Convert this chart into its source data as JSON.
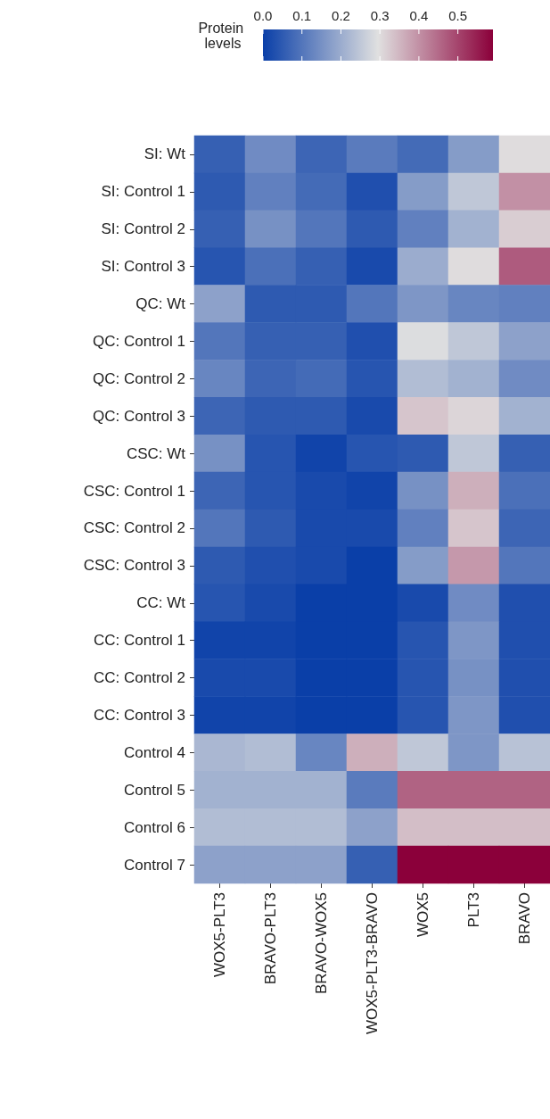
{
  "chart_data": {
    "type": "heatmap",
    "clabel": "Protein levels",
    "clim": [
      0,
      0.59
    ],
    "cticks": [
      {
        "value": 0,
        "label": "0.0"
      },
      0.1,
      0.2,
      0.3,
      0.4,
      0.5
    ],
    "categories": [
      "WOX5-PLT3",
      "BRAVO-PLT3",
      "BRAVO-WOX5",
      "WOX5-PLT3-BRAVO",
      "WOX5",
      "PLT3",
      "BRAVO"
    ],
    "y_categories": [
      "SI: Wt",
      "SI: Control 1",
      "SI: Control 2",
      "SI: Control 3",
      "QC: Wt",
      "QC: Control 1",
      "QC: Control 2",
      "QC: Control 3",
      "CSC: Wt",
      "CSC: Control 1",
      "CSC: Control 2",
      "CSC: Control 3",
      "CC: Wt",
      "CC: Control 1",
      "CC: Control 2",
      "CC: Control 3",
      "Control 4",
      "Control 5",
      "Control 6",
      "Control 7"
    ],
    "cells": [
      [
        0.06,
        0.14,
        0.07,
        0.11,
        0.08,
        0.17,
        0.3
      ],
      [
        0.05,
        0.12,
        0.08,
        0.03,
        0.17,
        0.25,
        0.4
      ],
      [
        0.06,
        0.15,
        0.1,
        0.05,
        0.12,
        0.21,
        0.32
      ],
      [
        0.04,
        0.09,
        0.06,
        0.02,
        0.2,
        0.3,
        0.47
      ],
      [
        0.18,
        0.05,
        0.05,
        0.1,
        0.16,
        0.13,
        0.12
      ],
      [
        0.1,
        0.06,
        0.06,
        0.03,
        0.29,
        0.25,
        0.18
      ],
      [
        0.13,
        0.07,
        0.08,
        0.04,
        0.23,
        0.21,
        0.14
      ],
      [
        0.07,
        0.05,
        0.05,
        0.02,
        0.33,
        0.31,
        0.21
      ],
      [
        0.15,
        0.04,
        0.01,
        0.04,
        0.05,
        0.25,
        0.06
      ],
      [
        0.07,
        0.04,
        0.02,
        0.01,
        0.15,
        0.36,
        0.09
      ],
      [
        0.1,
        0.05,
        0.02,
        0.02,
        0.12,
        0.33,
        0.07
      ],
      [
        0.05,
        0.03,
        0.02,
        0,
        0.17,
        0.39,
        0.1
      ],
      [
        0.04,
        0.02,
        0,
        0,
        0.02,
        0.14,
        0.03
      ],
      [
        0.01,
        0.01,
        0,
        0,
        0.04,
        0.16,
        0.03
      ],
      [
        0.02,
        0.02,
        0,
        0,
        0.04,
        0.15,
        0.03
      ],
      [
        0.01,
        0.01,
        0,
        0,
        0.04,
        0.16,
        0.03
      ],
      [
        0.22,
        0.23,
        0.13,
        0.36,
        0.25,
        0.16,
        0.24
      ],
      [
        0.21,
        0.21,
        0.21,
        0.11,
        0.46,
        0.46,
        0.46
      ],
      [
        0.23,
        0.23,
        0.23,
        0.18,
        0.34,
        0.34,
        0.34
      ],
      [
        0.18,
        0.18,
        0.18,
        0.06,
        0.59,
        0.59,
        0.59
      ]
    ]
  }
}
